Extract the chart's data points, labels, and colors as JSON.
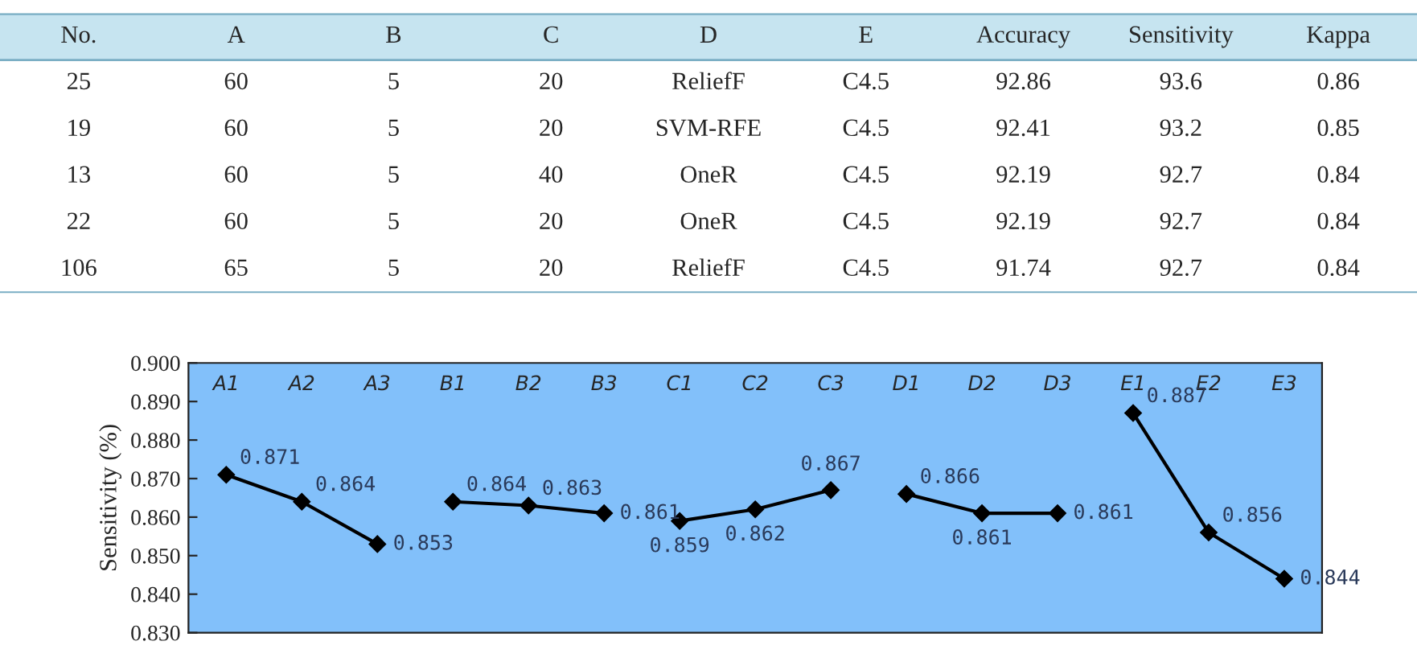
{
  "chart_data": [
    {
      "type": "other",
      "categories": [
        "No.",
        "A",
        "B",
        "C",
        "D",
        "E",
        "Accuracy",
        "Sensitivity",
        "Kappa"
      ],
      "annotations": [
        "25",
        "60",
        "5",
        "20",
        "ReliefF",
        "C4.5",
        "92.86",
        "93.6",
        "0.86",
        "19",
        "60",
        "5",
        "20",
        "SVM-RFE",
        "C4.5",
        "92.41",
        "93.2",
        "0.85",
        "13",
        "60",
        "5",
        "40",
        "OneR",
        "C4.5",
        "92.19",
        "92.7",
        "0.84",
        "22",
        "60",
        "5",
        "20",
        "OneR",
        "C4.5",
        "92.19",
        "92.7",
        "0.84",
        "106",
        "65",
        "5",
        "20",
        "ReliefF",
        "C4.5",
        "91.74",
        "92.7",
        "0.84"
      ]
    },
    {
      "type": "line",
      "ylabel": "Sensitivity (%)",
      "categories": [
        "A1",
        "A2",
        "A3",
        "B1",
        "B2",
        "B3",
        "C1",
        "C2",
        "C3",
        "D1",
        "D2",
        "D3",
        "E1",
        "E2",
        "E3"
      ],
      "series": [
        {
          "color": "#000000",
          "values": [
            0.871,
            0.864,
            0.853,
            null,
            null,
            null,
            null,
            null,
            null,
            null,
            null,
            null,
            null,
            null,
            null
          ]
        },
        {
          "color": "#000000",
          "values": [
            null,
            null,
            null,
            0.864,
            0.863,
            0.861,
            null,
            null,
            null,
            null,
            null,
            null,
            null,
            null,
            null
          ]
        },
        {
          "color": "#000000",
          "values": [
            null,
            null,
            null,
            null,
            null,
            null,
            0.859,
            0.862,
            0.867,
            null,
            null,
            null,
            null,
            null,
            null
          ]
        },
        {
          "color": "#000000",
          "values": [
            null,
            null,
            null,
            null,
            null,
            null,
            null,
            null,
            null,
            0.866,
            0.861,
            0.861,
            null,
            null,
            null
          ]
        },
        {
          "color": "#000000",
          "values": [
            null,
            null,
            null,
            null,
            null,
            null,
            null,
            null,
            null,
            null,
            null,
            null,
            0.887,
            0.856,
            0.844
          ]
        }
      ],
      "ylim": [
        0.83,
        0.9
      ],
      "yticks": [
        {
          "value": 0.83,
          "label": "0.830"
        },
        {
          "value": 0.84,
          "label": "0.840"
        },
        {
          "value": 0.85,
          "label": "0.850"
        },
        {
          "value": 0.86,
          "label": "0.860"
        },
        {
          "value": 0.87,
          "label": "0.870"
        },
        {
          "value": 0.88,
          "label": "0.880"
        },
        {
          "value": 0.89,
          "label": "0.890"
        },
        {
          "value": 0.9,
          "label": "0.900"
        }
      ],
      "marker": "diamond",
      "line_style": "solid",
      "grid": false,
      "data_labels": true
    }
  ]
}
